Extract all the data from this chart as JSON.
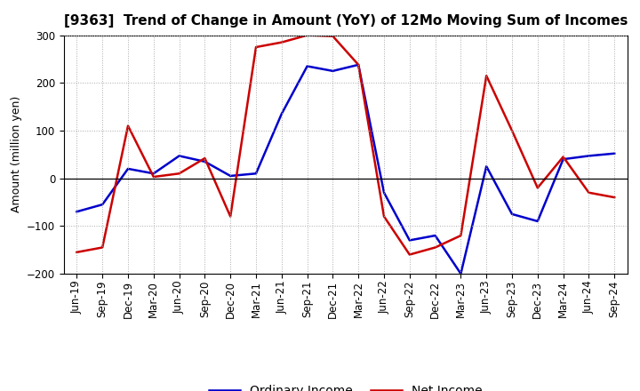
{
  "title": "[9363]  Trend of Change in Amount (YoY) of 12Mo Moving Sum of Incomes",
  "ylabel": "Amount (million yen)",
  "xlabels": [
    "Jun-19",
    "Sep-19",
    "Dec-19",
    "Mar-20",
    "Jun-20",
    "Sep-20",
    "Dec-20",
    "Mar-21",
    "Jun-21",
    "Sep-21",
    "Dec-21",
    "Mar-22",
    "Jun-22",
    "Sep-22",
    "Dec-22",
    "Mar-23",
    "Jun-23",
    "Sep-23",
    "Dec-23",
    "Mar-24",
    "Jun-24",
    "Sep-24"
  ],
  "ordinary_income": [
    -70,
    -55,
    20,
    10,
    47,
    35,
    5,
    10,
    135,
    235,
    225,
    238,
    -30,
    -130,
    -120,
    -200,
    25,
    -75,
    -90,
    40,
    47,
    52
  ],
  "net_income": [
    -155,
    -145,
    110,
    3,
    10,
    42,
    -80,
    275,
    285,
    300,
    298,
    238,
    -80,
    -160,
    -145,
    -120,
    215,
    100,
    -20,
    45,
    -30,
    -40
  ],
  "ordinary_color": "#0000cc",
  "net_color": "#cc0000",
  "ylim": [
    -200,
    300
  ],
  "yticks": [
    -200,
    -100,
    0,
    100,
    200,
    300
  ],
  "background_color": "#ffffff",
  "grid_color": "#aaaaaa",
  "line_width": 1.8,
  "legend_ordinary": "Ordinary Income",
  "legend_net": "Net Income",
  "title_fontsize": 11,
  "axis_fontsize": 9,
  "tick_fontsize": 8.5,
  "legend_fontsize": 10
}
